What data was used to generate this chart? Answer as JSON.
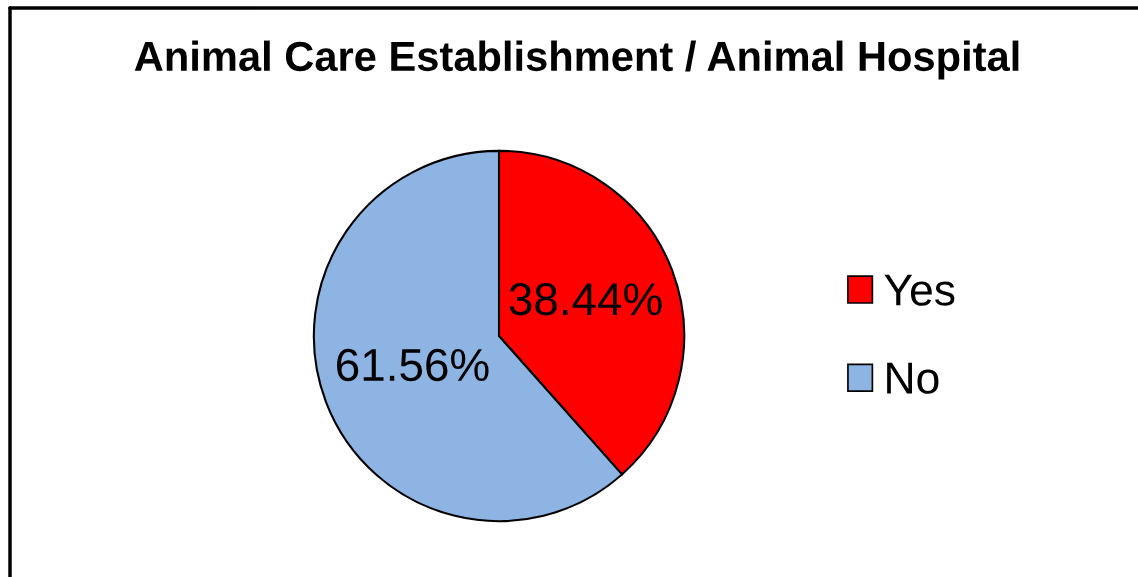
{
  "chart_data": {
    "type": "pie",
    "title": "Animal Care Establishment / Animal Hospital",
    "categories": [
      "Yes",
      "No"
    ],
    "values": [
      38.44,
      61.56
    ],
    "colors": [
      "#ff0000",
      "#8eb4e3"
    ],
    "value_labels": [
      "38.44%",
      "61.56%"
    ],
    "legend": "right"
  }
}
